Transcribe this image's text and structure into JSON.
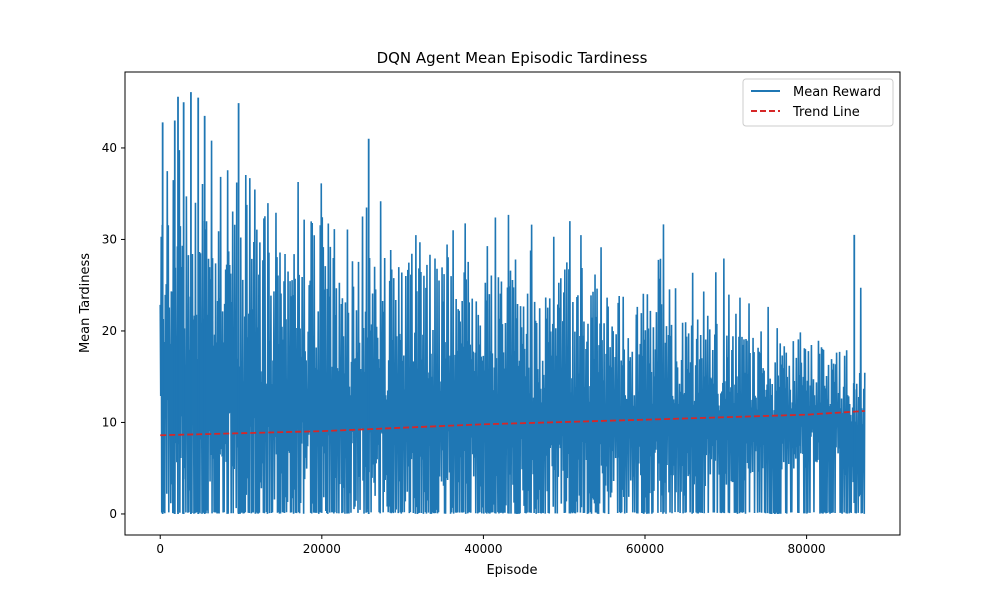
{
  "chart_data": {
    "type": "line",
    "title": "DQN Agent Mean Episodic Tardiness",
    "xlabel": "Episode",
    "ylabel": "Mean Tardiness",
    "xlim": [
      -4360,
      91560
    ],
    "ylim": [
      -2.3,
      48.3
    ],
    "x_ticks": [
      0,
      20000,
      40000,
      60000,
      80000
    ],
    "y_ticks": [
      0,
      10,
      20,
      30,
      40
    ],
    "x_tick_labels": [
      "0",
      "20000",
      "40000",
      "60000",
      "80000"
    ],
    "y_tick_labels": [
      "0",
      "10",
      "20",
      "30",
      "40"
    ],
    "grid": false,
    "legend": {
      "position": "top-right",
      "entries": [
        "Mean Reward",
        "Trend Line"
      ]
    },
    "series": [
      {
        "name": "Mean Reward",
        "style": "solid",
        "color": "#1f77b4",
        "episode_range": [
          0,
          87200
        ],
        "envelope": {
          "x": [
            0,
            2000,
            4000,
            6000,
            9000,
            12000,
            16000,
            20000,
            25000,
            30000,
            35000,
            40000,
            45000,
            50000,
            55000,
            60000,
            65000,
            70000,
            75000,
            80000,
            82000,
            84000,
            85000,
            86000,
            87200
          ],
          "upper": [
            43,
            45.5,
            46,
            44.5,
            45,
            41,
            41,
            40.5,
            41,
            38,
            37,
            36,
            35,
            34,
            34,
            33,
            31,
            29,
            27,
            24.5,
            21,
            20,
            18.5,
            30.5,
            22.5
          ],
          "typical_upper": [
            37,
            36,
            34,
            33,
            32,
            31,
            30,
            29,
            28,
            27.5,
            27,
            26,
            25,
            24,
            23.5,
            23,
            21,
            20,
            19,
            18.5,
            18,
            17,
            17,
            16.5,
            16
          ],
          "typical_lower": [
            0,
            0,
            0,
            0,
            0,
            0,
            0,
            0,
            0,
            0,
            0,
            0,
            0,
            0.5,
            1,
            1.5,
            2,
            3,
            4,
            5,
            6,
            6,
            3,
            1,
            1
          ],
          "lower": [
            0,
            0,
            0,
            0,
            0,
            0,
            0,
            0,
            0,
            0,
            0,
            0,
            0,
            0,
            0,
            0,
            0,
            0,
            0,
            0,
            0,
            0,
            0,
            0,
            0
          ]
        },
        "highlighted_spikes": [
          {
            "x": 300,
            "y": 42.8
          },
          {
            "x": 1800,
            "y": 43
          },
          {
            "x": 2200,
            "y": 45.6
          },
          {
            "x": 2900,
            "y": 45
          },
          {
            "x": 3800,
            "y": 46.1
          },
          {
            "x": 4700,
            "y": 45.5
          },
          {
            "x": 5500,
            "y": 43.5
          },
          {
            "x": 9700,
            "y": 44.9
          },
          {
            "x": 25800,
            "y": 41
          },
          {
            "x": 85900,
            "y": 30.5
          }
        ]
      },
      {
        "name": "Trend Line",
        "style": "dashed",
        "color": "#d62728",
        "x": [
          0,
          20000,
          40000,
          60000,
          80000,
          87200
        ],
        "values": [
          8.6,
          9.05,
          9.8,
          10.3,
          10.85,
          11.25
        ]
      }
    ]
  }
}
